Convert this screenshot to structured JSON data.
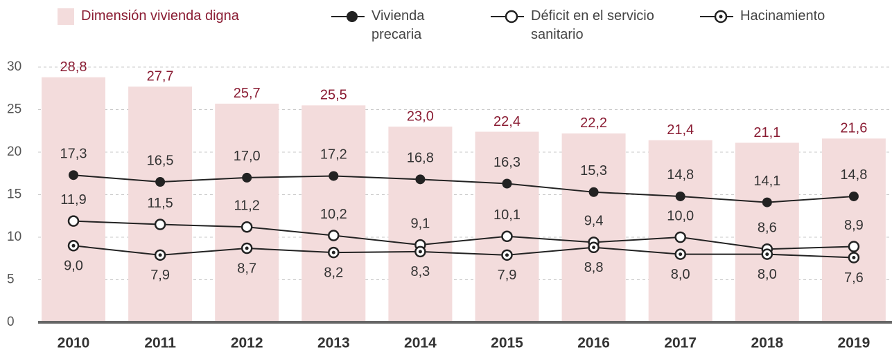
{
  "chart_data": {
    "type": "bar_line",
    "categories": [
      "2010",
      "2011",
      "2012",
      "2013",
      "2014",
      "2015",
      "2016",
      "2017",
      "2018",
      "2019"
    ],
    "ylim": [
      0,
      30
    ],
    "yticks": [
      0,
      5,
      10,
      15,
      20,
      25,
      30
    ],
    "grid": true,
    "series": [
      {
        "name": "Dimensión vivienda digna",
        "type": "bar",
        "color": "#f3dcdc",
        "label_color": "#8a1c33",
        "values": [
          28.8,
          27.7,
          25.7,
          25.5,
          23.0,
          22.4,
          22.2,
          21.4,
          21.1,
          21.6
        ],
        "value_labels": [
          "28,8",
          "27,7",
          "25,7",
          "25,5",
          "23,0",
          "22,4",
          "22,2",
          "21,4",
          "21,1",
          "21,6"
        ]
      },
      {
        "name": "Vivienda precaria",
        "type": "line",
        "marker": "filled",
        "color": "#222222",
        "values": [
          17.3,
          16.5,
          17.0,
          17.2,
          16.8,
          16.3,
          15.3,
          14.8,
          14.1,
          14.8
        ],
        "value_labels": [
          "17,3",
          "16,5",
          "17,0",
          "17,2",
          "16,8",
          "16,3",
          "15,3",
          "14,8",
          "14,1",
          "14,8"
        ]
      },
      {
        "name": "Déficit en el servicio sanitario",
        "type": "line",
        "marker": "open",
        "color": "#222222",
        "values": [
          11.9,
          11.5,
          11.2,
          10.2,
          9.1,
          10.1,
          9.4,
          10.0,
          8.6,
          8.9
        ],
        "value_labels": [
          "11,9",
          "11,5",
          "11,2",
          "10,2",
          "9,1",
          "10,1",
          "9,4",
          "10,0",
          "8,6",
          "8,9"
        ]
      },
      {
        "name": "Hacinamiento",
        "type": "line",
        "marker": "dotted",
        "color": "#222222",
        "values": [
          9.0,
          7.9,
          8.7,
          8.2,
          8.3,
          7.9,
          8.8,
          8.0,
          8.0,
          7.6
        ],
        "value_labels": [
          "9,0",
          "7,9",
          "8,7",
          "8,2",
          "8,3",
          "7,9",
          "8,8",
          "8,0",
          "8,0",
          "7,6"
        ]
      }
    ]
  }
}
